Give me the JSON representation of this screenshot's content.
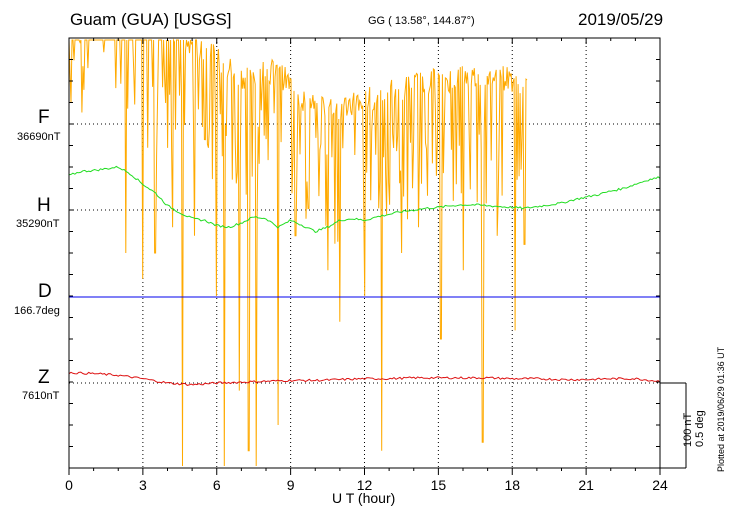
{
  "header": {
    "station": "Guam (GUA)  [USGS]",
    "coords": "GG ( 13.58°, 144.87°)",
    "date": "2019/05/29"
  },
  "footer": {
    "plotted": "Plotted at 2019/06/29 01:36 UT"
  },
  "colors": {
    "F": "#ffaa00",
    "H": "#22dd22",
    "D": "#0000ee",
    "Z": "#dd1111",
    "axis": "#000000"
  },
  "chart_data": {
    "type": "line",
    "title": "",
    "xlabel": "U T (hour)",
    "xlim": [
      0,
      24
    ],
    "xticks": [
      0,
      3,
      6,
      9,
      12,
      15,
      18,
      21,
      24
    ],
    "xtick_labels": [
      "0",
      "3",
      "6",
      "9",
      "12",
      "15",
      "18",
      "21",
      "24"
    ],
    "grid": true,
    "scale_bar": [
      "100 nT",
      "0.5 deg"
    ],
    "series": [
      {
        "name": "F",
        "baseline_label": "36690nT",
        "x": [
          0,
          0.25,
          0.5,
          0.75,
          1,
          1.25,
          1.5,
          1.75,
          2,
          2.25,
          2.5,
          2.75,
          3,
          3.5,
          4,
          4.5,
          5,
          5.5,
          6,
          6.5,
          7,
          7.5,
          8,
          8.5,
          9,
          9.5,
          10,
          10.5,
          11,
          11.5,
          12,
          12.5,
          13,
          13.5,
          14,
          14.5,
          15,
          15.5,
          16,
          16.5,
          17,
          17.5,
          18,
          18.4,
          18.6
        ],
        "values": [
          160,
          165,
          168,
          172,
          175,
          173,
          170,
          168,
          158,
          148,
          140,
          132,
          125,
          115,
          108,
          100,
          92,
          85,
          75,
          65,
          55,
          58,
          62,
          60,
          45,
          28,
          20,
          22,
          18,
          25,
          28,
          32,
          38,
          42,
          45,
          48,
          50,
          52,
          55,
          55,
          55,
          55,
          52,
          50,
          50
        ],
        "dips": [
          {
            "x": 2.3,
            "value": -150
          },
          {
            "x": 3.0,
            "value": -180
          },
          {
            "x": 3.5,
            "value": -150
          },
          {
            "x": 4.2,
            "value": -120
          },
          {
            "x": 4.6,
            "value": -410
          },
          {
            "x": 5.1,
            "value": -130
          },
          {
            "x": 6.0,
            "value": -200
          },
          {
            "x": 6.3,
            "value": -400
          },
          {
            "x": 6.9,
            "value": -310
          },
          {
            "x": 7.3,
            "value": -380
          },
          {
            "x": 7.6,
            "value": -400
          },
          {
            "x": 8.5,
            "value": -350
          },
          {
            "x": 9.2,
            "value": -130
          },
          {
            "x": 10.5,
            "value": -170
          },
          {
            "x": 11.0,
            "value": -230
          },
          {
            "x": 12.0,
            "value": -200
          },
          {
            "x": 12.7,
            "value": -380
          },
          {
            "x": 13.5,
            "value": -150
          },
          {
            "x": 14.2,
            "value": -120
          },
          {
            "x": 15.1,
            "value": -250
          },
          {
            "x": 16.0,
            "value": -170
          },
          {
            "x": 16.8,
            "value": -370
          },
          {
            "x": 17.4,
            "value": -130
          },
          {
            "x": 18.1,
            "value": -240
          },
          {
            "x": 18.5,
            "value": -140
          }
        ]
      },
      {
        "name": "H",
        "baseline_label": "35290nT",
        "x": [
          0,
          0.5,
          1,
          1.5,
          2,
          2.5,
          3,
          3.5,
          4,
          4.5,
          5,
          5.5,
          6,
          6.5,
          7,
          7.5,
          8,
          8.5,
          9,
          9.5,
          10,
          10.5,
          11,
          11.5,
          12,
          12.5,
          13,
          13.5,
          14,
          14.5,
          15,
          15.5,
          16,
          16.5,
          17,
          17.5,
          18,
          18.5,
          19,
          19.5,
          20,
          20.5,
          21,
          21.5,
          22,
          22.5,
          23,
          23.5,
          24
        ],
        "values": [
          40,
          45,
          46,
          48,
          50,
          42,
          30,
          20,
          5,
          -3,
          -10,
          -12,
          -18,
          -20,
          -15,
          -8,
          -10,
          -20,
          -12,
          -18,
          -25,
          -20,
          -12,
          -10,
          -12,
          -8,
          -5,
          -2,
          0,
          2,
          3,
          5,
          6,
          6,
          5,
          4,
          3,
          2,
          4,
          6,
          8,
          12,
          15,
          18,
          22,
          25,
          30,
          35,
          38
        ]
      },
      {
        "name": "D",
        "baseline_label": "166.7deg",
        "x": [
          0,
          24
        ],
        "values": [
          0,
          0
        ]
      },
      {
        "name": "Z",
        "baseline_label": "7610nT",
        "x": [
          0,
          1,
          2,
          3,
          4,
          5,
          6,
          7,
          8,
          9,
          10,
          11,
          12,
          13,
          14,
          15,
          16,
          17,
          18,
          19,
          20,
          21,
          22,
          23,
          24
        ],
        "values": [
          12,
          11,
          9,
          5,
          0,
          -2,
          0,
          1,
          2,
          3,
          3,
          4,
          5,
          5,
          6,
          6,
          6,
          6,
          5,
          5,
          4,
          4,
          5,
          5,
          2
        ]
      }
    ]
  }
}
